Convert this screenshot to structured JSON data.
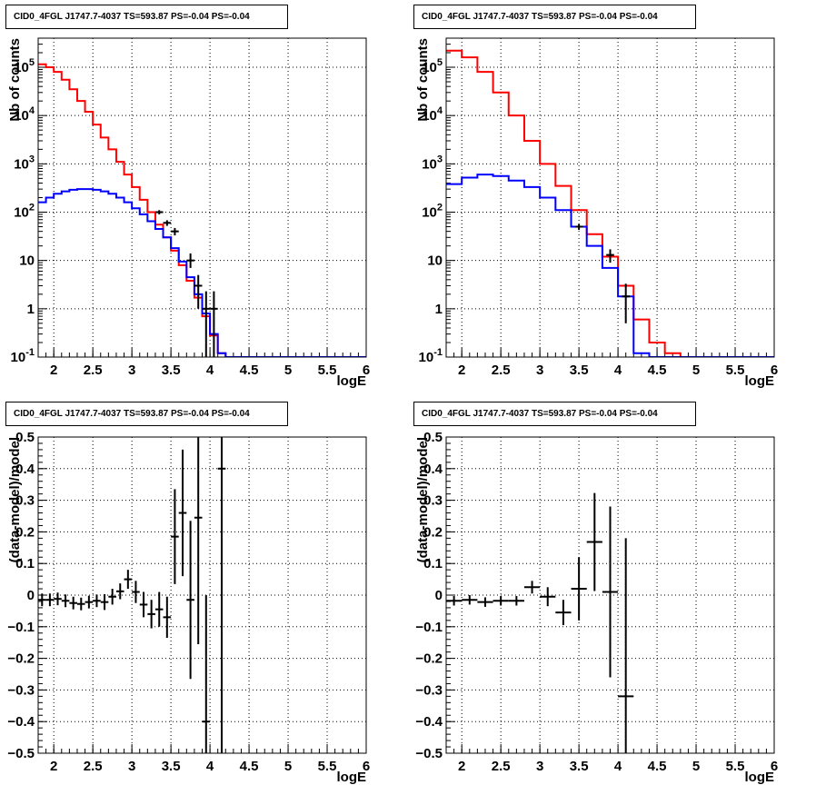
{
  "chart_data": [
    {
      "type": "histogram",
      "title": "CID0_4FGL J1747.7-4037 TS=593.87 PS=-0.04 PS=-0.04",
      "xlabel": "logE",
      "ylabel": "Nb of counts",
      "xlim": [
        1.8,
        6.0
      ],
      "ylim": [
        0.1,
        400000
      ],
      "yscale": "log",
      "grid": true,
      "x_ticks": [
        "2",
        "2.5",
        "3",
        "3.5",
        "4",
        "4.5",
        "5",
        "5.5",
        "6"
      ],
      "y_ticks": [
        "10^-1",
        "1",
        "10",
        "10^2",
        "10^3",
        "10^4",
        "10^5"
      ],
      "bin_edges": [
        1.8,
        1.9,
        2.0,
        2.1,
        2.2,
        2.3,
        2.4,
        2.5,
        2.6,
        2.7,
        2.8,
        2.9,
        3.0,
        3.1,
        3.2,
        3.3,
        3.4,
        3.5,
        3.6,
        3.7,
        3.8,
        3.9,
        4.0,
        4.1,
        4.2,
        4.3,
        4.4,
        4.5,
        4.6,
        4.7,
        4.8,
        4.9,
        5.0,
        5.1,
        5.2,
        5.3,
        5.4,
        5.5,
        5.6,
        5.7,
        5.8,
        5.9,
        6.0
      ],
      "series": [
        {
          "color": "#ff0000",
          "style": "step",
          "values": [
            115000,
            100000,
            80000,
            55000,
            35000,
            20000,
            12000,
            6500,
            3500,
            2000,
            1100,
            600,
            330,
            180,
            100,
            55,
            30,
            16,
            8,
            3.8,
            1.7,
            0.7,
            0.28,
            0.12,
            0.1,
            0.1,
            0.1,
            0.1,
            0.1,
            0.1,
            0.1,
            0.1,
            0.1,
            0.1,
            0.1,
            0.1,
            0.1,
            0.1,
            0.1,
            0.1,
            0.1,
            0.1
          ]
        },
        {
          "color": "#0000ff",
          "style": "step",
          "values": [
            160,
            200,
            240,
            270,
            290,
            300,
            300,
            290,
            270,
            240,
            200,
            160,
            120,
            90,
            65,
            45,
            30,
            18,
            9.5,
            4.5,
            2,
            0.8,
            0.3,
            0.12,
            0.1,
            0.1,
            0.1,
            0.1,
            0.1,
            0.1,
            0.1,
            0.1,
            0.1,
            0.1,
            0.1,
            0.1,
            0.1,
            0.1,
            0.1,
            0.1,
            0.1,
            0.1
          ]
        },
        {
          "color": "#000000",
          "style": "errorbar",
          "points": [
            {
              "x": 3.35,
              "y": 100,
              "yerr_lo": 10,
              "yerr_hi": 10
            },
            {
              "x": 3.45,
              "y": 60,
              "yerr_lo": 8,
              "yerr_hi": 8
            },
            {
              "x": 3.55,
              "y": 40,
              "yerr_lo": 7,
              "yerr_hi": 7
            },
            {
              "x": 3.75,
              "y": 10,
              "yerr_lo": 3,
              "yerr_hi": 4
            },
            {
              "x": 3.85,
              "y": 3,
              "yerr_lo": 2,
              "yerr_hi": 2
            },
            {
              "x": 3.95,
              "y": 1,
              "yerr_lo": 0.95,
              "yerr_hi": 1.3
            },
            {
              "x": 4.05,
              "y": 1,
              "yerr_lo": 0.95,
              "yerr_hi": 1.3
            }
          ]
        }
      ]
    },
    {
      "type": "histogram",
      "title": "CID0_4FGL J1747.7-4037 TS=593.87 PS=-0.04 PS=-0.04",
      "xlabel": "logE",
      "ylabel": "Nb of counts",
      "xlim": [
        1.8,
        6.0
      ],
      "ylim": [
        0.1,
        400000
      ],
      "yscale": "log",
      "grid": true,
      "x_ticks": [
        "2",
        "2.5",
        "3",
        "3.5",
        "4",
        "4.5",
        "5",
        "5.5",
        "6"
      ],
      "y_ticks": [
        "10^-1",
        "1",
        "10",
        "10^2",
        "10^3",
        "10^4",
        "10^5"
      ],
      "bin_edges": [
        1.8,
        2.0,
        2.2,
        2.4,
        2.6,
        2.8,
        3.0,
        3.2,
        3.4,
        3.6,
        3.8,
        4.0,
        4.2,
        4.4,
        4.6,
        4.8,
        5.0,
        5.2,
        5.4,
        5.6,
        5.8,
        6.0
      ],
      "series": [
        {
          "color": "#ff0000",
          "style": "step",
          "values": [
            220000,
            160000,
            80000,
            30000,
            10000,
            3000,
            1000,
            350,
            110,
            35,
            12,
            3,
            0.6,
            0.2,
            0.12,
            0.1,
            0.1,
            0.1,
            0.1,
            0.1,
            0.1
          ]
        },
        {
          "color": "#0000ff",
          "style": "step",
          "values": [
            380,
            520,
            600,
            560,
            450,
            330,
            200,
            110,
            50,
            20,
            7,
            1.8,
            0.12,
            0.1,
            0.1,
            0.1,
            0.1,
            0.1,
            0.1,
            0.1,
            0.1
          ]
        },
        {
          "color": "#000000",
          "style": "errorbar",
          "points": [
            {
              "x": 3.5,
              "y": 50,
              "yerr_lo": 7,
              "yerr_hi": 7
            },
            {
              "x": 3.9,
              "y": 13,
              "yerr_lo": 4,
              "yerr_hi": 4
            },
            {
              "x": 4.1,
              "y": 1.8,
              "yerr_lo": 1.3,
              "yerr_hi": 1.5
            }
          ]
        }
      ]
    },
    {
      "type": "scatter",
      "title": "CID0_4FGL J1747.7-4037 TS=593.87 PS=-0.04 PS=-0.04",
      "xlabel": "logE",
      "ylabel": "(data-model)/model",
      "xlim": [
        1.8,
        6.0
      ],
      "ylim": [
        -0.5,
        0.5
      ],
      "grid": true,
      "x_ticks": [
        "2",
        "2.5",
        "3",
        "3.5",
        "4",
        "4.5",
        "5",
        "5.5",
        "6"
      ],
      "y_ticks": [
        "−0.5",
        "−0.4",
        "−0.3",
        "−0.2",
        "−0.1",
        "0",
        "0.1",
        "0.2",
        "0.3",
        "0.4",
        "0.5"
      ],
      "series": [
        {
          "color": "#000000",
          "style": "errorbar",
          "xhalf": 0.05,
          "points": [
            {
              "x": 1.85,
              "y": -0.015,
              "yerr": 0.02
            },
            {
              "x": 1.95,
              "y": -0.015,
              "yerr": 0.02
            },
            {
              "x": 2.05,
              "y": -0.012,
              "yerr": 0.02
            },
            {
              "x": 2.15,
              "y": -0.018,
              "yerr": 0.02
            },
            {
              "x": 2.25,
              "y": -0.025,
              "yerr": 0.02
            },
            {
              "x": 2.35,
              "y": -0.028,
              "yerr": 0.02
            },
            {
              "x": 2.45,
              "y": -0.022,
              "yerr": 0.02
            },
            {
              "x": 2.55,
              "y": -0.018,
              "yerr": 0.02
            },
            {
              "x": 2.65,
              "y": -0.022,
              "yerr": 0.025
            },
            {
              "x": 2.75,
              "y": -0.005,
              "yerr": 0.025
            },
            {
              "x": 2.85,
              "y": 0.012,
              "yerr": 0.025
            },
            {
              "x": 2.95,
              "y": 0.05,
              "yerr": 0.03
            },
            {
              "x": 3.05,
              "y": 0.01,
              "yerr": 0.035
            },
            {
              "x": 3.15,
              "y": -0.03,
              "yerr": 0.04
            },
            {
              "x": 3.25,
              "y": -0.06,
              "yerr": 0.045
            },
            {
              "x": 3.35,
              "y": -0.045,
              "yerr": 0.055
            },
            {
              "x": 3.45,
              "y": -0.07,
              "yerr": 0.065
            },
            {
              "x": 3.55,
              "y": 0.185,
              "yerr": 0.15
            },
            {
              "x": 3.65,
              "y": 0.26,
              "yerr": 0.2
            },
            {
              "x": 3.75,
              "y": -0.015,
              "yerr": 0.25
            },
            {
              "x": 3.85,
              "y": 0.245,
              "yerr": 0.4
            },
            {
              "x": 3.95,
              "y": -0.4,
              "yerr": 0.4
            },
            {
              "x": 4.15,
              "y": 0.4,
              "yerr": 1.0
            }
          ]
        }
      ]
    },
    {
      "type": "scatter",
      "title": "CID0_4FGL J1747.7-4037 TS=593.87 PS=-0.04 PS=-0.04",
      "xlabel": "logE",
      "ylabel": "(data-model)/model",
      "xlim": [
        1.8,
        6.0
      ],
      "ylim": [
        -0.5,
        0.5
      ],
      "grid": true,
      "x_ticks": [
        "2",
        "2.5",
        "3",
        "3.5",
        "4",
        "4.5",
        "5",
        "5.5",
        "6"
      ],
      "y_ticks": [
        "−0.5",
        "−0.4",
        "−0.3",
        "−0.2",
        "−0.1",
        "0",
        "0.1",
        "0.2",
        "0.3",
        "0.4",
        "0.5"
      ],
      "series": [
        {
          "color": "#000000",
          "style": "errorbar",
          "xhalf": 0.1,
          "points": [
            {
              "x": 1.9,
              "y": -0.018,
              "yerr": 0.015
            },
            {
              "x": 2.1,
              "y": -0.015,
              "yerr": 0.015
            },
            {
              "x": 2.3,
              "y": -0.022,
              "yerr": 0.015
            },
            {
              "x": 2.5,
              "y": -0.018,
              "yerr": 0.015
            },
            {
              "x": 2.7,
              "y": -0.018,
              "yerr": 0.015
            },
            {
              "x": 2.9,
              "y": 0.025,
              "yerr": 0.02
            },
            {
              "x": 3.1,
              "y": -0.005,
              "yerr": 0.03
            },
            {
              "x": 3.3,
              "y": -0.055,
              "yerr": 0.04
            },
            {
              "x": 3.5,
              "y": 0.02,
              "yerr": 0.1
            },
            {
              "x": 3.7,
              "y": 0.168,
              "yerr": 0.155
            },
            {
              "x": 3.9,
              "y": 0.01,
              "yerr": 0.27
            },
            {
              "x": 4.1,
              "y": -0.32,
              "yerr": 0.5
            }
          ]
        }
      ]
    }
  ]
}
